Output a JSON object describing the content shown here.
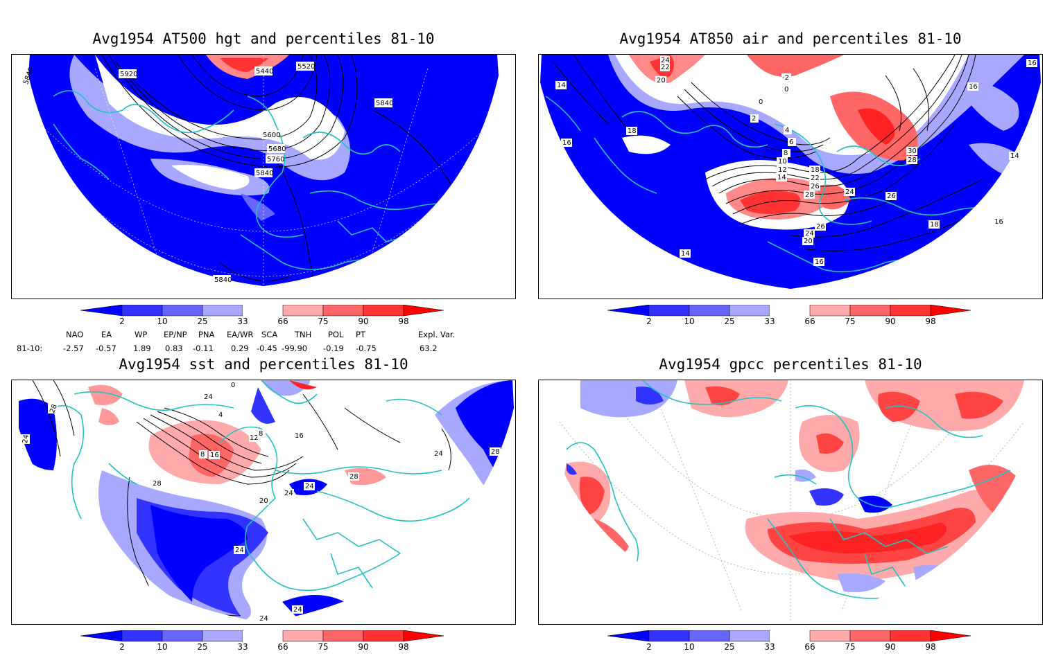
{
  "panels": [
    {
      "title": "Avg1954 AT500 hgt and percentiles 81-10",
      "contour_labels": [
        "5920",
        "5440",
        "5520",
        "5840",
        "5840",
        "5600",
        "5680",
        "5760",
        "5840",
        "5840",
        "5840"
      ]
    },
    {
      "title": "Avg1954 AT850 air and percentiles 81-10",
      "contour_labels": [
        "24",
        "22",
        "20",
        "16",
        "14",
        "18",
        "16",
        "2",
        "0",
        "-2",
        "0",
        "4",
        "6",
        "8",
        "10",
        "12",
        "14",
        "18",
        "22",
        "26",
        "28",
        "24",
        "26",
        "30",
        "28",
        "16",
        "14",
        "26",
        "24",
        "20",
        "18",
        "16",
        "14",
        "16"
      ]
    },
    {
      "title": "Avg1954 sst and percentiles 81-10",
      "contour_labels": [
        "28",
        "24",
        "0",
        "24",
        "4",
        "12",
        "8",
        "8",
        "16",
        "16",
        "20",
        "28",
        "24",
        "24",
        "24",
        "28",
        "24",
        "28",
        "24",
        "24"
      ]
    },
    {
      "title": "Avg1954 gpcc percentiles 81-10",
      "contour_labels": []
    }
  ],
  "colorbar": {
    "labels": [
      "2",
      "10",
      "25",
      "33",
      "66",
      "75",
      "90",
      "98"
    ],
    "colors": [
      "#0000ff",
      "#3333ff",
      "#6666ff",
      "#a8a8ff",
      "#ffffff",
      "#ffaaaa",
      "#ff6666",
      "#ff3333",
      "#ff0000"
    ]
  },
  "indices": {
    "headers": [
      "NAO",
      "EA",
      "WP",
      "EP/NP",
      "PNA",
      "EA/WR",
      "SCA",
      "TNH",
      "POL",
      "PT",
      "Expl. Var."
    ],
    "row_label": "81-10:",
    "values": [
      "-2.57",
      "-0.57",
      "1.89",
      "0.83",
      "-0.11",
      "0.29",
      "-0.45",
      "-99.90",
      "-0.19",
      "-0.75",
      "63.2"
    ]
  },
  "map_colors": {
    "deep_blue": "#0000ff",
    "mid_blue": "#4444ff",
    "light_blue": "#a8a8ff",
    "light_red": "#ffaaaa",
    "mid_red": "#ff6666",
    "red": "#ff2222",
    "coast": "#22c2c2"
  }
}
